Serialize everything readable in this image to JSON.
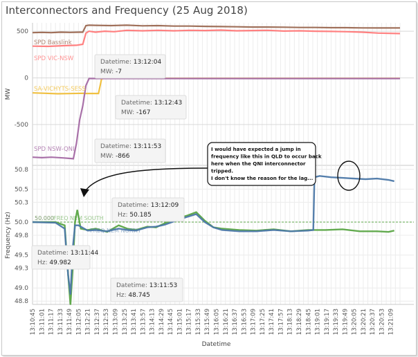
{
  "title": "Interconnectors and Frequency (25 Aug 2018)",
  "chart_data": [
    {
      "type": "line",
      "ylabel": "MW",
      "ylim": [
        -930,
        590
      ],
      "yticks": [
        500,
        0,
        -500
      ],
      "grid": true,
      "series": [
        {
          "name": "SPD Basslink",
          "color": "#a0705a",
          "points": [
            [
              0,
              485
            ],
            [
              3,
              488
            ],
            [
              6,
              485
            ],
            [
              9,
              490
            ],
            [
              12,
              488
            ],
            [
              15,
              490
            ],
            [
              16,
              490
            ],
            [
              17,
              560
            ],
            [
              18,
              565
            ],
            [
              20,
              563
            ],
            [
              25,
              560
            ],
            [
              30,
              565
            ],
            [
              35,
              558
            ],
            [
              40,
              560
            ],
            [
              45,
              555
            ],
            [
              50,
              555
            ],
            [
              55,
              552
            ],
            [
              60,
              550
            ],
            [
              65,
              548
            ],
            [
              70,
              545
            ],
            [
              75,
              545
            ],
            [
              80,
              543
            ],
            [
              85,
              540
            ],
            [
              90,
              540
            ],
            [
              95,
              538
            ],
            [
              100,
              538
            ],
            [
              105,
              536
            ],
            [
              110,
              535
            ],
            [
              117,
              535
            ]
          ]
        },
        {
          "name": "SPD VIC-NSW",
          "color": "#ff8080",
          "points": [
            [
              0,
              340
            ],
            [
              5,
              338
            ],
            [
              10,
              345
            ],
            [
              14,
              350
            ],
            [
              16,
              360
            ],
            [
              17,
              480
            ],
            [
              18,
              500
            ],
            [
              20,
              490
            ],
            [
              23,
              500
            ],
            [
              26,
              495
            ],
            [
              30,
              510
            ],
            [
              35,
              505
            ],
            [
              40,
              510
            ],
            [
              45,
              505
            ],
            [
              50,
              510
            ],
            [
              55,
              508
            ],
            [
              60,
              512
            ],
            [
              65,
              505
            ],
            [
              70,
              508
            ],
            [
              75,
              510
            ],
            [
              80,
              502
            ],
            [
              85,
              505
            ],
            [
              90,
              500
            ],
            [
              95,
              498
            ],
            [
              100,
              495
            ],
            [
              105,
              490
            ],
            [
              110,
              480
            ],
            [
              117,
              475
            ]
          ]
        },
        {
          "name": "SA-VICHYTS-SESS",
          "color": "#f0c040",
          "points": [
            [
              0,
              -160
            ],
            [
              4,
              -165
            ],
            [
              8,
              -170
            ],
            [
              12,
              -168
            ],
            [
              16,
              -165
            ],
            [
              17,
              -167
            ],
            [
              18,
              -167
            ],
            [
              19,
              -167
            ],
            [
              21,
              -167
            ],
            [
              22,
              -10
            ],
            [
              23,
              -5
            ],
            [
              30,
              -5
            ],
            [
              40,
              -5
            ],
            [
              50,
              -5
            ],
            [
              60,
              -5
            ],
            [
              70,
              -5
            ],
            [
              80,
              -5
            ],
            [
              90,
              -5
            ],
            [
              100,
              -5
            ],
            [
              110,
              -5
            ],
            [
              117,
              -5
            ]
          ]
        },
        {
          "name": "SPD NSW-QNI",
          "color": "#a870a8",
          "points": [
            [
              0,
              -850
            ],
            [
              3,
              -855
            ],
            [
              6,
              -850
            ],
            [
              10,
              -858
            ],
            [
              13,
              -866
            ],
            [
              14,
              -700
            ],
            [
              15,
              -450
            ],
            [
              16,
              -300
            ],
            [
              17,
              -80
            ],
            [
              18,
              -7
            ],
            [
              20,
              -7
            ],
            [
              30,
              -7
            ],
            [
              40,
              -7
            ],
            [
              50,
              -7
            ],
            [
              60,
              -7
            ],
            [
              70,
              -7
            ],
            [
              80,
              -7
            ],
            [
              90,
              -7
            ],
            [
              100,
              -7
            ],
            [
              110,
              -7
            ],
            [
              117,
              -7
            ]
          ]
        }
      ],
      "annotations": [
        {
          "datetime": "13:12:04",
          "value": "-7"
        },
        {
          "datetime": "13:12:43",
          "value": "-167"
        },
        {
          "datetime": "13:11:53",
          "value": "-866"
        }
      ]
    },
    {
      "type": "line",
      "ylabel": "Frequency (Hz)",
      "ylim": [
        48.75,
        50.85
      ],
      "yticks": [
        50.8,
        50.5,
        50.3,
        50.0,
        49.8,
        49.5,
        49.3,
        49.0,
        48.8
      ],
      "reference_line": {
        "value": 50.0,
        "label": "50.000"
      },
      "xlabel": "Datetime",
      "xticks": [
        "13:10:45",
        "13:11:01",
        "13:11:17",
        "13:11:33",
        "13:11:49",
        "13:12:05",
        "13:12:21",
        "13:12:37",
        "13:12:53",
        "13:13:09",
        "13:13:25",
        "13:13:41",
        "13:13:57",
        "13:14:13",
        "13:14:29",
        "13:14:45",
        "13:15:01",
        "13:15:17",
        "13:15:33",
        "13:15:49",
        "13:16:05",
        "13:16:21",
        "13:16:37",
        "13:16:53",
        "13:17:09",
        "13:17:25",
        "13:17:41",
        "13:17:57",
        "13:18:13",
        "13:18:29",
        "13:18:45",
        "13:19:01",
        "13:19:17",
        "13:19:33",
        "13:19:49",
        "13:20:05",
        "13:20:21",
        "13:20:37",
        "13:20:53",
        "13:21:09"
      ],
      "x_range_seconds": [
        0,
        640
      ],
      "series": [
        {
          "name": "FREQ NEM SOUTH",
          "color": "#5aa545",
          "points": [
            [
              0,
              50.0
            ],
            [
              40,
              50.0
            ],
            [
              56,
              49.95
            ],
            [
              62,
              49.2
            ],
            [
              66,
              48.745
            ],
            [
              70,
              49.3
            ],
            [
              74,
              50.0
            ],
            [
              78,
              50.185
            ],
            [
              84,
              49.9
            ],
            [
              96,
              49.88
            ],
            [
              110,
              49.9
            ],
            [
              130,
              49.85
            ],
            [
              150,
              49.95
            ],
            [
              165,
              49.9
            ],
            [
              180,
              49.88
            ],
            [
              200,
              49.93
            ],
            [
              215,
              49.92
            ],
            [
              230,
              49.98
            ],
            [
              250,
              50.05
            ],
            [
              270,
              50.1
            ],
            [
              285,
              50.15
            ],
            [
              300,
              50.02
            ],
            [
              315,
              49.92
            ],
            [
              330,
              49.9
            ],
            [
              360,
              49.88
            ],
            [
              390,
              49.87
            ],
            [
              420,
              49.89
            ],
            [
              450,
              49.86
            ],
            [
              480,
              49.88
            ],
            [
              510,
              49.88
            ],
            [
              540,
              49.89
            ],
            [
              570,
              49.86
            ],
            [
              600,
              49.86
            ],
            [
              620,
              49.85
            ],
            [
              630,
              49.87
            ]
          ]
        },
        {
          "name": "FREQ NEM NORTH",
          "color": "#4c78a8",
          "points": [
            [
              0,
              50.0
            ],
            [
              40,
              49.99
            ],
            [
              56,
              49.9
            ],
            [
              62,
              49.2
            ],
            [
              66,
              48.9
            ],
            [
              70,
              49.6
            ],
            [
              74,
              49.95
            ],
            [
              80,
              49.95
            ],
            [
              96,
              49.87
            ],
            [
              110,
              49.88
            ],
            [
              130,
              49.86
            ],
            [
              150,
              49.9
            ],
            [
              165,
              49.88
            ],
            [
              180,
              49.87
            ],
            [
              200,
              49.92
            ],
            [
              215,
              49.93
            ],
            [
              230,
              49.96
            ],
            [
              250,
              50.02
            ],
            [
              270,
              50.08
            ],
            [
              285,
              50.12
            ],
            [
              300,
              50.0
            ],
            [
              315,
              49.92
            ],
            [
              330,
              49.88
            ],
            [
              360,
              49.86
            ],
            [
              390,
              49.86
            ],
            [
              420,
              49.88
            ],
            [
              450,
              49.86
            ],
            [
              480,
              49.87
            ],
            [
              489,
              49.88
            ],
            [
              491,
              50.68
            ],
            [
              500,
              50.7
            ],
            [
              520,
              50.68
            ],
            [
              540,
              50.67
            ],
            [
              560,
              50.66
            ],
            [
              580,
              50.65
            ],
            [
              600,
              50.66
            ],
            [
              620,
              50.64
            ],
            [
              630,
              50.62
            ]
          ]
        }
      ],
      "annotations": [
        {
          "datetime": "13:12:09",
          "value": "50.185"
        },
        {
          "datetime": "13:11:44",
          "value": "49.982"
        },
        {
          "datetime": "13:11:53",
          "value": "48.745"
        }
      ],
      "callout": "I would have expected a jump in frequency like this in QLD to occur back here when the QNI interconnector tripped.\nI don't know the reason for the lag..."
    }
  ],
  "tooltip_labels": {
    "datetime": "Datetime:",
    "mw": "MW:",
    "hz": "Hz:"
  }
}
